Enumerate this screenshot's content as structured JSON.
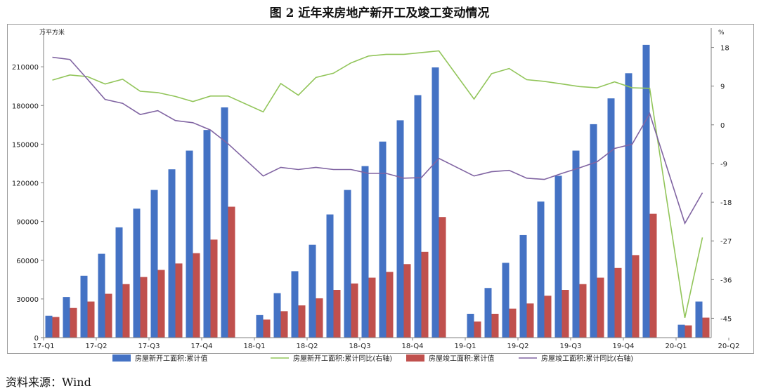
{
  "title": "图 2   近年来房地产新开工及竣工变动情况",
  "source": "资料来源：Wind",
  "chart_data": {
    "type": "bar",
    "left_axis": {
      "unit": "万平方米",
      "ylim": [
        0,
        240000
      ],
      "ticks": [
        "0",
        "30000",
        "60000",
        "90000",
        "120000",
        "150000",
        "180000",
        "210000"
      ]
    },
    "right_axis": {
      "unit": "%",
      "ylim": [
        -49.5,
        22.5
      ],
      "ticks": [
        "18",
        "9",
        "0",
        "-9",
        "-18",
        "-27",
        "-36",
        "-45"
      ]
    },
    "x_tick_labels": [
      "17-Q1",
      "17-Q2",
      "17-Q3",
      "17-Q4",
      "18-Q1",
      "18-Q2",
      "18-Q3",
      "18-Q4",
      "19-Q1",
      "19-Q2",
      "19-Q3",
      "19-Q4",
      "20-Q1",
      "20-Q2"
    ],
    "months": [
      "2017-02",
      "2017-03",
      "2017-04",
      "2017-05",
      "2017-06",
      "2017-07",
      "2017-08",
      "2017-09",
      "2017-10",
      "2017-11",
      "2017-12",
      "2018-01",
      "2018-02",
      "2018-03",
      "2018-04",
      "2018-05",
      "2018-06",
      "2018-07",
      "2018-08",
      "2018-09",
      "2018-10",
      "2018-11",
      "2018-12",
      "2019-01",
      "2019-02",
      "2019-03",
      "2019-04",
      "2019-05",
      "2019-06",
      "2019-07",
      "2019-08",
      "2019-09",
      "2019-10",
      "2019-11",
      "2019-12",
      "2020-01",
      "2020-02",
      "2020-03"
    ],
    "series": [
      {
        "name": "房屋新开工面积:累计值",
        "kind": "bar",
        "axis": "left",
        "color": "#4472c4",
        "values": [
          17000,
          31500,
          48000,
          65000,
          85500,
          100000,
          114500,
          130500,
          145000,
          161000,
          178500,
          null,
          17500,
          34500,
          51500,
          72000,
          95500,
          114500,
          133000,
          152000,
          168500,
          188000,
          209500,
          null,
          18500,
          38500,
          58000,
          79500,
          105500,
          125500,
          145000,
          165500,
          185500,
          205000,
          227000,
          null,
          10000,
          28000
        ]
      },
      {
        "name": "房屋竣工面积:累计值",
        "kind": "bar",
        "axis": "left",
        "color": "#c0504d",
        "values": [
          16000,
          23000,
          28000,
          34000,
          41500,
          47000,
          52500,
          57500,
          65500,
          76000,
          101500,
          null,
          14000,
          20500,
          25000,
          30500,
          37000,
          42000,
          46500,
          51000,
          57000,
          66500,
          93500,
          null,
          12500,
          18500,
          22500,
          26500,
          32500,
          37000,
          41500,
          46500,
          54000,
          64000,
          96000,
          null,
          9500,
          15500
        ]
      },
      {
        "name": "房屋新开工面积:累计同比(右轴)",
        "kind": "line",
        "axis": "right",
        "color": "#92c55a",
        "values": [
          10.4,
          11.6,
          11.2,
          9.5,
          10.6,
          7.8,
          7.5,
          6.6,
          5.4,
          6.7,
          6.7,
          null,
          3.0,
          9.6,
          6.9,
          11.0,
          12.0,
          14.4,
          16.0,
          16.4,
          16.4,
          16.8,
          17.2,
          null,
          6.0,
          11.9,
          13.1,
          10.5,
          10.1,
          9.5,
          8.9,
          8.6,
          10.0,
          8.6,
          8.5,
          null,
          -44.9,
          -26.2
        ]
      },
      {
        "name": "房屋竣工面积:累计同比(右轴)",
        "kind": "line",
        "axis": "right",
        "color": "#8064a2",
        "values": [
          15.7,
          15.2,
          10.6,
          5.9,
          5.0,
          2.4,
          3.3,
          1.0,
          0.5,
          -1.2,
          -4.4,
          null,
          -11.9,
          -9.9,
          -10.4,
          -9.9,
          -10.4,
          -10.4,
          -11.3,
          -11.3,
          -12.4,
          -12.3,
          -7.8,
          null,
          -11.9,
          -10.9,
          -10.6,
          -12.4,
          -12.7,
          -11.3,
          -10.0,
          -8.6,
          -5.5,
          -4.5,
          2.6,
          null,
          -22.9,
          -15.8
        ]
      }
    ]
  }
}
